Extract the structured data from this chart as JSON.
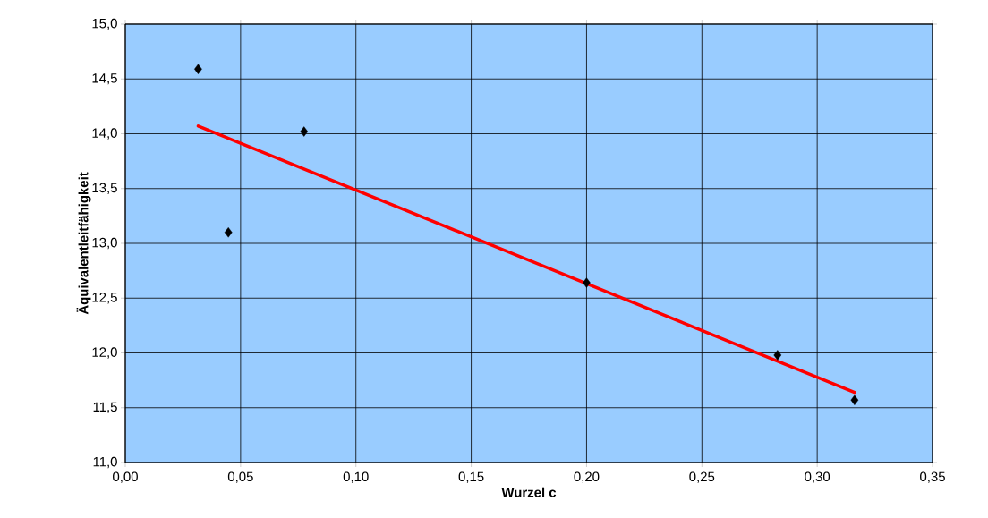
{
  "chart_data": {
    "type": "scatter",
    "xlabel": "Wurzel c",
    "ylabel": "Äquivalentleitfähigkeit",
    "x": [
      0.0316,
      0.0447,
      0.0775,
      0.2,
      0.2828,
      0.3162
    ],
    "series": [
      {
        "color": "#000000",
        "marker": "diamond",
        "values": [
          14.59,
          13.1,
          14.02,
          12.64,
          11.98,
          11.57
        ]
      },
      {
        "type": "line",
        "color": "#ff0000",
        "marker": "none",
        "x": [
          0.0316,
          0.3162
        ],
        "values": [
          14.07,
          11.64
        ]
      }
    ],
    "xlim": [
      0,
      0.35
    ],
    "ylim": [
      11,
      15
    ],
    "xticks": [
      {
        "value": 0,
        "label": "0,00"
      },
      {
        "value": 0.05,
        "label": "0,05"
      },
      {
        "value": 0.1,
        "label": "0,10"
      },
      {
        "value": 0.15,
        "label": "0,15"
      },
      {
        "value": 0.2,
        "label": "0,20"
      },
      {
        "value": 0.25,
        "label": "0,25"
      },
      {
        "value": 0.3,
        "label": "0,30"
      },
      {
        "value": 0.35,
        "label": "0,35"
      }
    ],
    "yticks": [
      {
        "value": 11,
        "label": "11,0"
      },
      {
        "value": 11.5,
        "label": "11,5"
      },
      {
        "value": 12,
        "label": "12,0"
      },
      {
        "value": 12.5,
        "label": "12,5"
      },
      {
        "value": 13,
        "label": "13,0"
      },
      {
        "value": 13.5,
        "label": "13,5"
      },
      {
        "value": 14,
        "label": "14,0"
      },
      {
        "value": 14.5,
        "label": "14,5"
      },
      {
        "value": 15,
        "label": "15,0"
      }
    ],
    "grid": true
  }
}
